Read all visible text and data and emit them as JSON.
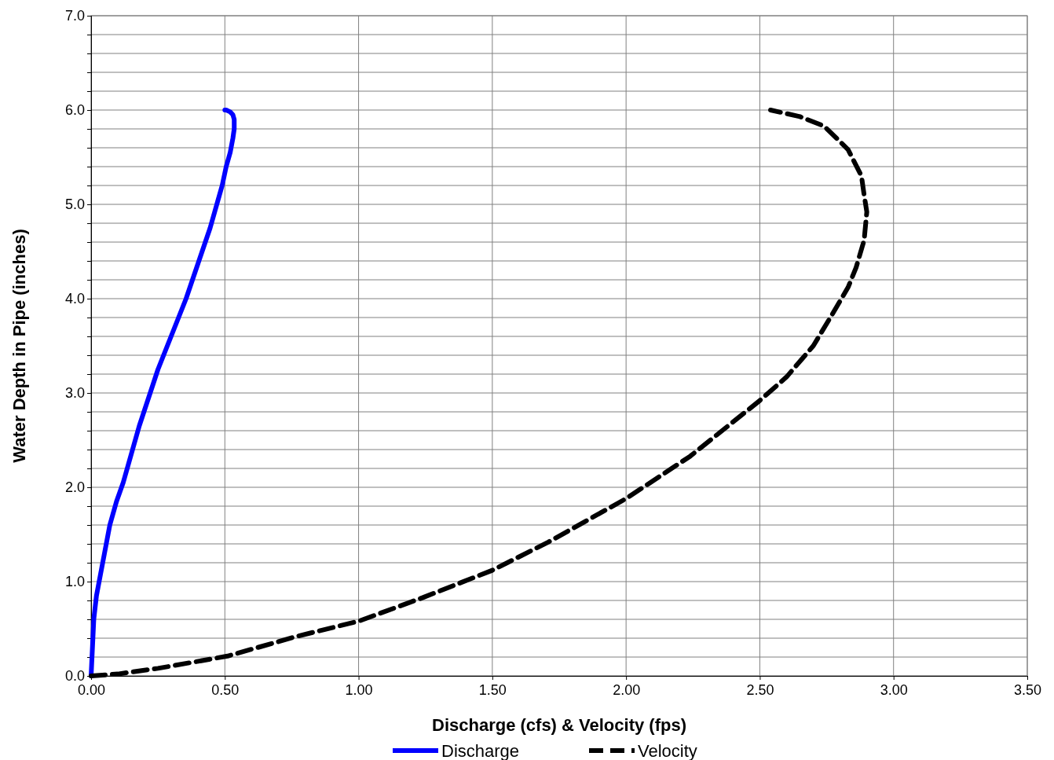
{
  "chart_data": {
    "type": "line",
    "xlabel": "Discharge (cfs) & Velocity (fps)",
    "ylabel": "Water Depth in Pipe (inches)",
    "xlim": [
      0,
      3.5
    ],
    "ylim": [
      0,
      7
    ],
    "xticks": [
      {
        "value": 0,
        "label": "0.00"
      },
      {
        "value": 0.5,
        "label": "0.50"
      },
      {
        "value": 1,
        "label": "1.00"
      },
      {
        "value": 1.5,
        "label": "1.50"
      },
      {
        "value": 2,
        "label": "2.00"
      },
      {
        "value": 2.5,
        "label": "2.50"
      },
      {
        "value": 3,
        "label": "3.00"
      },
      {
        "value": 3.5,
        "label": "3.50"
      }
    ],
    "yticks": [
      {
        "value": 0,
        "label": "0.0"
      },
      {
        "value": 0.2,
        "label": null
      },
      {
        "value": 0.4,
        "label": null
      },
      {
        "value": 0.6,
        "label": null
      },
      {
        "value": 0.8,
        "label": null
      },
      {
        "value": 1,
        "label": "1.0"
      },
      {
        "value": 1.2,
        "label": null
      },
      {
        "value": 1.4,
        "label": null
      },
      {
        "value": 1.6,
        "label": null
      },
      {
        "value": 1.8,
        "label": null
      },
      {
        "value": 2,
        "label": "2.0"
      },
      {
        "value": 2.2,
        "label": null
      },
      {
        "value": 2.4,
        "label": null
      },
      {
        "value": 2.6,
        "label": null
      },
      {
        "value": 2.8,
        "label": null
      },
      {
        "value": 3,
        "label": "3.0"
      },
      {
        "value": 3.2,
        "label": null
      },
      {
        "value": 3.4,
        "label": null
      },
      {
        "value": 3.6,
        "label": null
      },
      {
        "value": 3.8,
        "label": null
      },
      {
        "value": 4,
        "label": "4.0"
      },
      {
        "value": 4.2,
        "label": null
      },
      {
        "value": 4.4,
        "label": null
      },
      {
        "value": 4.6,
        "label": null
      },
      {
        "value": 4.8,
        "label": null
      },
      {
        "value": 5,
        "label": "5.0"
      },
      {
        "value": 5.2,
        "label": null
      },
      {
        "value": 5.4,
        "label": null
      },
      {
        "value": 5.6,
        "label": null
      },
      {
        "value": 5.8,
        "label": null
      },
      {
        "value": 6,
        "label": "6.0"
      },
      {
        "value": 6.2,
        "label": null
      },
      {
        "value": 6.4,
        "label": null
      },
      {
        "value": 6.6,
        "label": null
      },
      {
        "value": 6.8,
        "label": null
      },
      {
        "value": 7,
        "label": "7.0"
      }
    ],
    "grid": true,
    "legend": "bottom",
    "series": [
      {
        "name": "Discharge",
        "color": "#0000ff",
        "line_style": "solid",
        "x": [
          0,
          0.005,
          0.01,
          0.02,
          0.03,
          0.05,
          0.07,
          0.095,
          0.12,
          0.15,
          0.18,
          0.215,
          0.25,
          0.285,
          0.32,
          0.355,
          0.385,
          0.415,
          0.445,
          0.47,
          0.49,
          0.505,
          0.52,
          0.53,
          0.535,
          0.535,
          0.53,
          0.52,
          0.505,
          0.5
        ],
        "values": [
          0,
          0.3,
          0.6,
          0.85,
          1.0,
          1.3,
          1.6,
          1.85,
          2.05,
          2.35,
          2.65,
          2.95,
          3.25,
          3.5,
          3.75,
          4.0,
          4.25,
          4.5,
          4.75,
          5.0,
          5.2,
          5.4,
          5.55,
          5.7,
          5.8,
          5.9,
          5.95,
          5.98,
          6.0,
          6.0
        ]
      },
      {
        "name": "Velocity",
        "color": "#000000",
        "line_style": "dashed",
        "x": [
          0,
          0.1,
          0.25,
          0.51,
          0.77,
          1.0,
          1.24,
          1.5,
          1.71,
          2.0,
          2.24,
          2.5,
          2.6,
          2.7,
          2.77,
          2.83,
          2.86,
          2.89,
          2.9,
          2.89,
          2.88,
          2.83,
          2.78,
          2.74,
          2.65,
          2.54
        ],
        "values": [
          0,
          0.02,
          0.08,
          0.21,
          0.42,
          0.58,
          0.83,
          1.12,
          1.42,
          1.88,
          2.33,
          2.92,
          3.17,
          3.5,
          3.83,
          4.12,
          4.33,
          4.62,
          4.92,
          5.1,
          5.3,
          5.58,
          5.72,
          5.83,
          5.93,
          6.0
        ]
      }
    ]
  }
}
